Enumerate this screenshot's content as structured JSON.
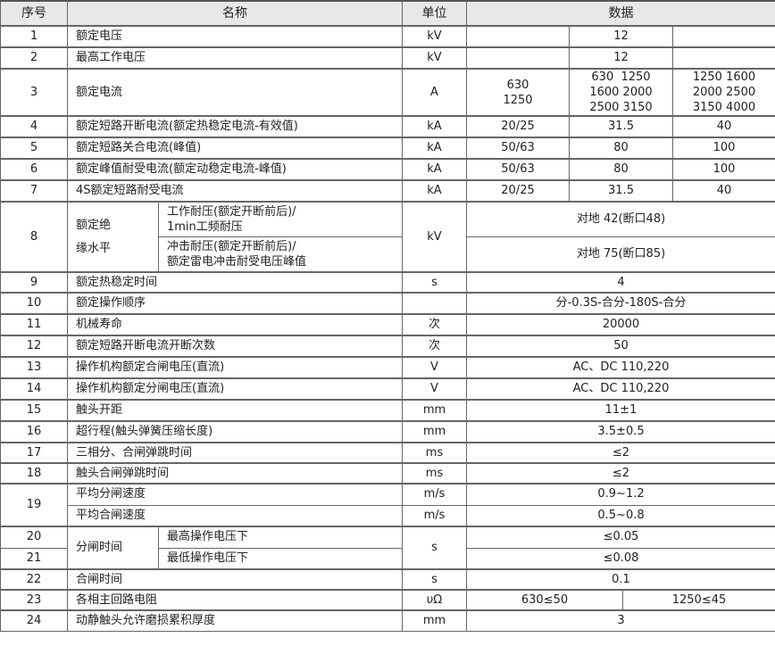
{
  "header": {
    "no": "序号",
    "name": "名称",
    "unit": "单位",
    "data": "数据"
  },
  "rows": {
    "r1": {
      "no": "1",
      "name": "额定电压",
      "unit": "kV",
      "v": "12"
    },
    "r2": {
      "no": "2",
      "name": "最高工作电压",
      "unit": "kV",
      "v": "12"
    },
    "r3": {
      "no": "3",
      "name": "额定电流",
      "unit": "A",
      "a": [
        "630",
        "1250"
      ],
      "b": [
        "630  1250",
        "1600 2000",
        "2500 3150"
      ],
      "c": [
        "1250 1600",
        "2000 2500",
        "3150 4000"
      ]
    },
    "r4": {
      "no": "4",
      "name": "额定短路开断电流(额定热稳定电流-有效值)",
      "unit": "kA",
      "a": "20/25",
      "b": "31.5",
      "c": "40"
    },
    "r5": {
      "no": "5",
      "name": "额定短路关合电流(峰值)",
      "unit": "kA",
      "a": "50/63",
      "b": "80",
      "c": "100"
    },
    "r6": {
      "no": "6",
      "name": "额定峰值耐受电流(额定动稳定电流-峰值)",
      "unit": "kA",
      "a": "50/63",
      "b": "80",
      "c": "100"
    },
    "r7": {
      "no": "7",
      "name": "4S额定短路耐受电流",
      "unit": "kA",
      "a": "20/25",
      "b": "31.5",
      "c": "40"
    },
    "r8": {
      "no": "8",
      "name": [
        "额定绝",
        "缘水平"
      ],
      "sub1": [
        "工作耐压(额定开断前后)/",
        "1min工频耐压"
      ],
      "sub2": [
        "冲击耐压(额定开断前后)/",
        "额定雷电冲击耐受电压峰值"
      ],
      "unit": "kV",
      "v1": "对地 42(断口48)",
      "v2": "对地 75(断口85)"
    },
    "r9": {
      "no": "9",
      "name": "额定热稳定时间",
      "unit": "s",
      "v": "4"
    },
    "r10": {
      "no": "10",
      "name": "额定操作顺序",
      "unit": "",
      "v": "分-0.3S-合分-180S-合分"
    },
    "r11": {
      "no": "11",
      "name": "机械寿命",
      "unit": "次",
      "v": "20000"
    },
    "r12": {
      "no": "12",
      "name": "额定短路开断电流开断次数",
      "unit": "次",
      "v": "50"
    },
    "r13": {
      "no": "13",
      "name": "操作机构额定合闸电压(直流)",
      "unit": "V",
      "v": "AC、DC 110,220"
    },
    "r14": {
      "no": "14",
      "name": "操作机构额定分闸电压(直流)",
      "unit": "V",
      "v": "AC、DC 110,220"
    },
    "r15": {
      "no": "15",
      "name": "触头开距",
      "unit": "mm",
      "v": "11±1"
    },
    "r16": {
      "no": "16",
      "name": "超行程(触头弹簧压缩长度)",
      "unit": "mm",
      "v": "3.5±0.5"
    },
    "r17": {
      "no": "17",
      "name": "三相分、合闸弹跳时间",
      "unit": "ms",
      "v": "≤2"
    },
    "r18": {
      "no": "18",
      "name": "触头合闸弹跳时间",
      "unit": "ms",
      "v": "≤2"
    },
    "r19": {
      "no": "19",
      "name1": "平均分闸速度",
      "unit1": "m/s",
      "v1": "0.9~1.2",
      "name2": "平均合闸速度",
      "unit2": "m/s",
      "v2": "0.5~0.8"
    },
    "r20": {
      "no": "20",
      "group": "分闸时间",
      "name": "最高操作电压下",
      "unit": "s",
      "v": "≤0.05"
    },
    "r21": {
      "no": "21",
      "name": "最低操作电压下",
      "v": "≤0.08"
    },
    "r22": {
      "no": "22",
      "name": "合闸时间",
      "unit": "s",
      "v": "0.1"
    },
    "r23": {
      "no": "23",
      "name": "各相主回路电阻",
      "unit": "υΩ",
      "a": "630≤50",
      "b": "1250≤45"
    },
    "r24": {
      "no": "24",
      "name": "动静触头允许磨损累积厚度",
      "unit": "mm",
      "v": "3"
    }
  }
}
